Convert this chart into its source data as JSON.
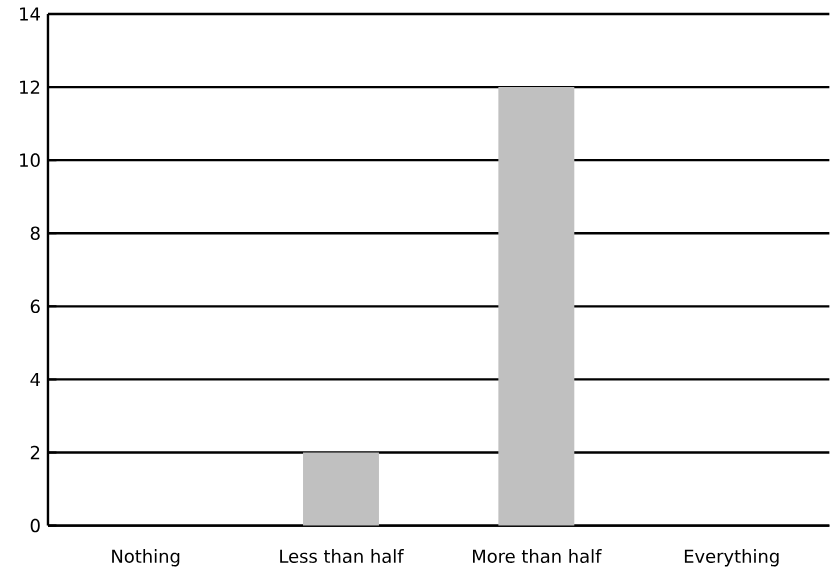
{
  "chart_data": {
    "type": "bar",
    "categories": [
      "Nothing",
      "Less than half",
      "More than half",
      "Everything"
    ],
    "values": [
      0,
      2,
      12,
      0
    ],
    "color": "#c0c0c0",
    "ylim": [
      0,
      14
    ],
    "yticks": [
      0,
      2,
      4,
      6,
      8,
      10,
      12,
      14
    ],
    "grid": "y"
  }
}
